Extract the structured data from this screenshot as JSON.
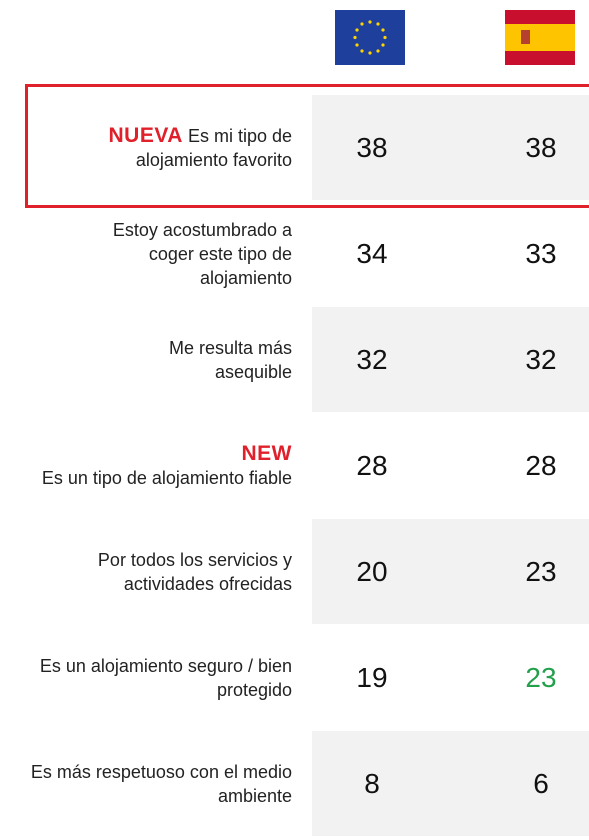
{
  "header": {
    "columns": [
      "EU",
      "ES"
    ]
  },
  "table": {
    "rows": [
      {
        "badge": "NUEVA",
        "label": "Es mi tipo de alojamiento favorito",
        "eu": 38,
        "es": 38
      },
      {
        "label": "Estoy acostumbrado a coger este tipo de alojamiento",
        "eu": 34,
        "es": 33
      },
      {
        "label": "Me resulta más asequible",
        "eu": 32,
        "es": 32
      },
      {
        "badge": "NEW",
        "label": "Es un tipo de alojamiento fiable",
        "eu": 28,
        "es": 28
      },
      {
        "label": "Por todos los servicios y actividades ofrecidas",
        "eu": 20,
        "es": 23
      },
      {
        "label": "Es un alojamiento seguro / bien protegido",
        "eu": 19,
        "es": 23
      },
      {
        "label": "Es más respetuoso con el medio ambiente",
        "eu": 8,
        "es": 6
      }
    ]
  }
}
